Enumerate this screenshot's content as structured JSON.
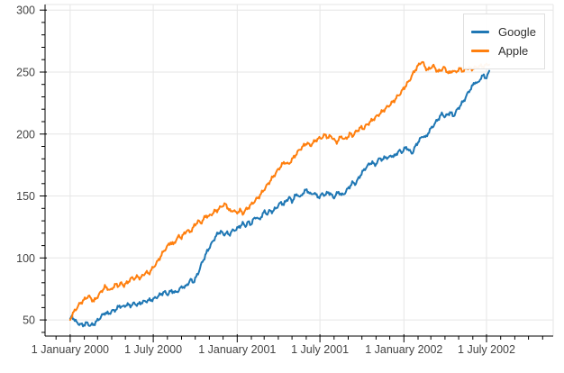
{
  "figure": {
    "background": "#ffffff",
    "grid_color": "#e6e6e6",
    "axis_color": "#000000",
    "tick_label_color": "#444444"
  },
  "legend": {
    "position": "top-right",
    "items": [
      {
        "label": "Google",
        "color": "#1f77b4"
      },
      {
        "label": "Apple",
        "color": "#ff7f0e"
      }
    ]
  },
  "chart_data": {
    "type": "line",
    "title": "",
    "xlabel": "",
    "ylabel": "",
    "grid": true,
    "legend_position": "top-right",
    "x_unit": "days since 2000-01-01",
    "x_domain_days": [
      -55,
      1058
    ],
    "y_domain": [
      37,
      304.5
    ],
    "y_major_ticks": [
      50,
      100,
      150,
      200,
      250,
      300
    ],
    "y_minor_step": 10,
    "x_major_ticks": [
      {
        "day": 0,
        "label": "1 January 2000"
      },
      {
        "day": 182,
        "label": "1 July 2000"
      },
      {
        "day": 366,
        "label": "1 January 2001"
      },
      {
        "day": 547,
        "label": "1 July 2001"
      },
      {
        "day": 731,
        "label": "1 January 2002"
      },
      {
        "day": 912,
        "label": "1 July 2002"
      }
    ],
    "series": [
      {
        "name": "Google",
        "color": "#1f77b4",
        "points": [
          [
            0,
            51
          ],
          [
            4,
            53
          ],
          [
            8,
            51
          ],
          [
            14,
            48
          ],
          [
            20,
            47
          ],
          [
            28,
            46
          ],
          [
            36,
            48
          ],
          [
            44,
            46
          ],
          [
            52,
            47
          ],
          [
            60,
            50
          ],
          [
            68,
            53
          ],
          [
            76,
            56
          ],
          [
            84,
            55
          ],
          [
            92,
            57
          ],
          [
            100,
            58
          ],
          [
            108,
            61
          ],
          [
            116,
            60
          ],
          [
            124,
            62
          ],
          [
            132,
            61
          ],
          [
            140,
            63
          ],
          [
            148,
            62
          ],
          [
            156,
            64
          ],
          [
            164,
            65
          ],
          [
            172,
            66
          ],
          [
            182,
            67
          ],
          [
            190,
            69
          ],
          [
            198,
            71
          ],
          [
            206,
            73
          ],
          [
            214,
            71
          ],
          [
            222,
            74
          ],
          [
            230,
            72
          ],
          [
            238,
            74
          ],
          [
            246,
            77
          ],
          [
            252,
            76
          ],
          [
            258,
            79
          ],
          [
            264,
            82
          ],
          [
            270,
            80
          ],
          [
            276,
            84
          ],
          [
            282,
            89
          ],
          [
            288,
            95
          ],
          [
            294,
            100
          ],
          [
            300,
            105
          ],
          [
            306,
            109
          ],
          [
            312,
            113
          ],
          [
            318,
            117
          ],
          [
            324,
            120
          ],
          [
            330,
            122
          ],
          [
            336,
            119
          ],
          [
            342,
            121
          ],
          [
            348,
            119
          ],
          [
            354,
            122
          ],
          [
            360,
            123
          ],
          [
            366,
            124
          ],
          [
            372,
            126
          ],
          [
            378,
            128
          ],
          [
            384,
            126
          ],
          [
            390,
            129
          ],
          [
            396,
            127
          ],
          [
            402,
            131
          ],
          [
            408,
            133
          ],
          [
            414,
            130
          ],
          [
            420,
            134
          ],
          [
            426,
            137
          ],
          [
            432,
            135
          ],
          [
            438,
            138
          ],
          [
            444,
            137
          ],
          [
            450,
            140
          ],
          [
            456,
            142
          ],
          [
            462,
            145
          ],
          [
            468,
            143
          ],
          [
            474,
            147
          ],
          [
            480,
            149
          ],
          [
            486,
            146
          ],
          [
            492,
            150
          ],
          [
            498,
            152
          ],
          [
            504,
            149
          ],
          [
            510,
            153
          ],
          [
            516,
            155
          ],
          [
            522,
            154
          ],
          [
            528,
            151
          ],
          [
            534,
            153
          ],
          [
            540,
            150
          ],
          [
            547,
            149
          ],
          [
            553,
            152
          ],
          [
            559,
            150
          ],
          [
            565,
            153
          ],
          [
            571,
            151
          ],
          [
            577,
            148
          ],
          [
            583,
            151
          ],
          [
            589,
            153
          ],
          [
            595,
            150
          ],
          [
            601,
            152
          ],
          [
            607,
            155
          ],
          [
            613,
            158
          ],
          [
            619,
            161
          ],
          [
            625,
            160
          ],
          [
            631,
            164
          ],
          [
            637,
            168
          ],
          [
            643,
            171
          ],
          [
            649,
            174
          ],
          [
            655,
            176
          ],
          [
            661,
            178
          ],
          [
            667,
            175
          ],
          [
            673,
            178
          ],
          [
            679,
            181
          ],
          [
            685,
            179
          ],
          [
            691,
            182
          ],
          [
            697,
            180
          ],
          [
            703,
            183
          ],
          [
            709,
            181
          ],
          [
            715,
            184
          ],
          [
            721,
            186
          ],
          [
            727,
            185
          ],
          [
            731,
            187
          ],
          [
            737,
            189
          ],
          [
            743,
            186
          ],
          [
            749,
            184
          ],
          [
            755,
            189
          ],
          [
            761,
            193
          ],
          [
            767,
            196
          ],
          [
            773,
            199
          ],
          [
            779,
            197
          ],
          [
            785,
            202
          ],
          [
            791,
            205
          ],
          [
            797,
            208
          ],
          [
            803,
            211
          ],
          [
            809,
            214
          ],
          [
            815,
            217
          ],
          [
            821,
            214
          ],
          [
            827,
            216
          ],
          [
            833,
            218
          ],
          [
            839,
            214
          ],
          [
            845,
            218
          ],
          [
            851,
            221
          ],
          [
            857,
            224
          ],
          [
            863,
            227
          ],
          [
            869,
            231
          ],
          [
            875,
            235
          ],
          [
            881,
            238
          ],
          [
            887,
            242
          ],
          [
            893,
            240
          ],
          [
            899,
            245
          ],
          [
            905,
            247
          ],
          [
            911,
            245
          ],
          [
            915,
            248
          ],
          [
            918,
            251
          ]
        ]
      },
      {
        "name": "Apple",
        "color": "#ff7f0e",
        "points": [
          [
            0,
            50
          ],
          [
            5,
            54
          ],
          [
            10,
            57
          ],
          [
            16,
            60
          ],
          [
            22,
            63
          ],
          [
            28,
            65
          ],
          [
            34,
            67
          ],
          [
            40,
            69
          ],
          [
            46,
            67
          ],
          [
            52,
            65
          ],
          [
            58,
            68
          ],
          [
            64,
            71
          ],
          [
            70,
            74
          ],
          [
            76,
            77
          ],
          [
            82,
            76
          ],
          [
            88,
            74
          ],
          [
            94,
            77
          ],
          [
            100,
            79
          ],
          [
            106,
            78
          ],
          [
            112,
            80
          ],
          [
            118,
            78
          ],
          [
            124,
            80
          ],
          [
            130,
            82
          ],
          [
            136,
            84
          ],
          [
            142,
            83
          ],
          [
            148,
            85
          ],
          [
            154,
            83
          ],
          [
            160,
            86
          ],
          [
            166,
            88
          ],
          [
            172,
            87
          ],
          [
            178,
            90
          ],
          [
            182,
            92
          ],
          [
            190,
            96
          ],
          [
            198,
            101
          ],
          [
            206,
            106
          ],
          [
            214,
            110
          ],
          [
            220,
            113
          ],
          [
            226,
            111
          ],
          [
            232,
            115
          ],
          [
            238,
            118
          ],
          [
            244,
            117
          ],
          [
            250,
            120
          ],
          [
            256,
            123
          ],
          [
            262,
            121
          ],
          [
            268,
            124
          ],
          [
            274,
            127
          ],
          [
            280,
            130
          ],
          [
            286,
            128
          ],
          [
            292,
            131
          ],
          [
            298,
            134
          ],
          [
            304,
            133
          ],
          [
            310,
            135
          ],
          [
            316,
            137
          ],
          [
            322,
            138
          ],
          [
            328,
            140
          ],
          [
            334,
            142
          ],
          [
            340,
            143
          ],
          [
            346,
            140
          ],
          [
            352,
            137
          ],
          [
            358,
            139
          ],
          [
            364,
            136
          ],
          [
            366,
            137
          ],
          [
            372,
            139
          ],
          [
            378,
            136
          ],
          [
            384,
            139
          ],
          [
            390,
            141
          ],
          [
            398,
            144
          ],
          [
            406,
            147
          ],
          [
            414,
            150
          ],
          [
            422,
            154
          ],
          [
            430,
            158
          ],
          [
            438,
            162
          ],
          [
            446,
            166
          ],
          [
            454,
            170
          ],
          [
            462,
            174
          ],
          [
            470,
            177
          ],
          [
            478,
            175
          ],
          [
            486,
            179
          ],
          [
            494,
            183
          ],
          [
            502,
            187
          ],
          [
            510,
            190
          ],
          [
            518,
            193
          ],
          [
            526,
            191
          ],
          [
            534,
            194
          ],
          [
            540,
            196
          ],
          [
            547,
            197
          ],
          [
            553,
            198
          ],
          [
            559,
            200
          ],
          [
            565,
            197
          ],
          [
            571,
            199
          ],
          [
            577,
            196
          ],
          [
            583,
            193
          ],
          [
            589,
            196
          ],
          [
            595,
            198
          ],
          [
            601,
            195
          ],
          [
            607,
            197
          ],
          [
            613,
            200
          ],
          [
            619,
            198
          ],
          [
            625,
            201
          ],
          [
            631,
            203
          ],
          [
            637,
            205
          ],
          [
            643,
            204
          ],
          [
            649,
            207
          ],
          [
            655,
            209
          ],
          [
            661,
            211
          ],
          [
            667,
            213
          ],
          [
            673,
            215
          ],
          [
            679,
            217
          ],
          [
            685,
            219
          ],
          [
            691,
            221
          ],
          [
            697,
            223
          ],
          [
            703,
            225
          ],
          [
            709,
            227
          ],
          [
            715,
            230
          ],
          [
            721,
            232
          ],
          [
            727,
            235
          ],
          [
            731,
            237
          ],
          [
            737,
            240
          ],
          [
            743,
            243
          ],
          [
            749,
            247
          ],
          [
            755,
            251
          ],
          [
            761,
            254
          ],
          [
            767,
            257
          ],
          [
            771,
            258
          ],
          [
            777,
            254
          ],
          [
            783,
            251
          ],
          [
            789,
            253
          ],
          [
            795,
            255
          ],
          [
            801,
            252
          ],
          [
            807,
            250
          ],
          [
            813,
            252
          ],
          [
            819,
            254
          ],
          [
            825,
            251
          ],
          [
            831,
            249
          ],
          [
            837,
            252
          ],
          [
            843,
            250
          ],
          [
            849,
            252
          ],
          [
            855,
            253
          ],
          [
            861,
            251
          ],
          [
            867,
            253
          ],
          [
            873,
            254
          ],
          [
            879,
            252
          ],
          [
            885,
            254
          ],
          [
            891,
            253
          ],
          [
            897,
            255
          ],
          [
            903,
            254
          ],
          [
            909,
            255
          ],
          [
            918,
            256
          ]
        ]
      }
    ]
  }
}
